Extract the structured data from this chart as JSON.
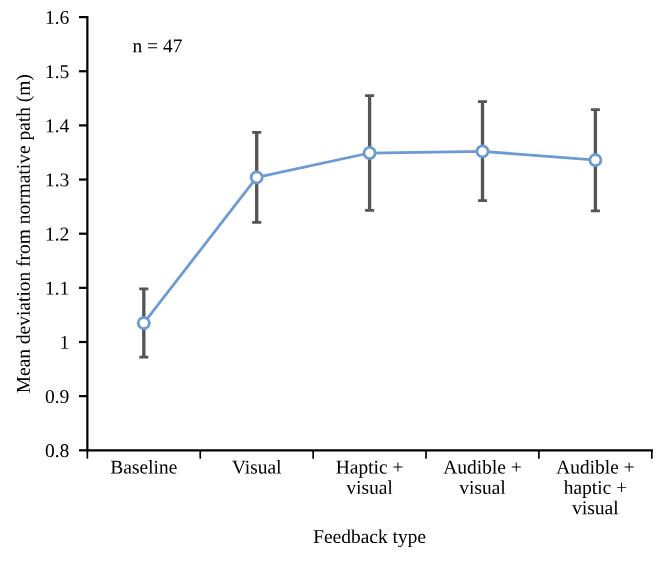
{
  "chart_data": {
    "type": "line",
    "xlabel": "Feedback type",
    "ylabel": "Mean deviation from normative path (m)",
    "annotations": [
      "n = 47"
    ],
    "categories": [
      "Baseline",
      "Visual",
      "Haptic +\nvisual",
      "Audible +\nvisual",
      "Audible +\nhaptic +\nvisual"
    ],
    "series": [
      {
        "color": "#6b9bd2",
        "values": [
          1.035,
          1.304,
          1.349,
          1.352,
          1.336
        ],
        "errors": [
          [
            0.972,
            1.098
          ],
          [
            1.221,
            1.387
          ],
          [
            1.243,
            1.455
          ],
          [
            1.261,
            1.444
          ],
          [
            1.242,
            1.429
          ]
        ]
      }
    ],
    "ylim": [
      0.8,
      1.6
    ],
    "yticks": [
      0.8,
      0.9,
      1,
      1.1,
      1.2,
      1.3,
      1.4,
      1.5,
      1.6
    ],
    "grid": false,
    "legend": false,
    "marker": "circle",
    "line_style": "solid"
  }
}
